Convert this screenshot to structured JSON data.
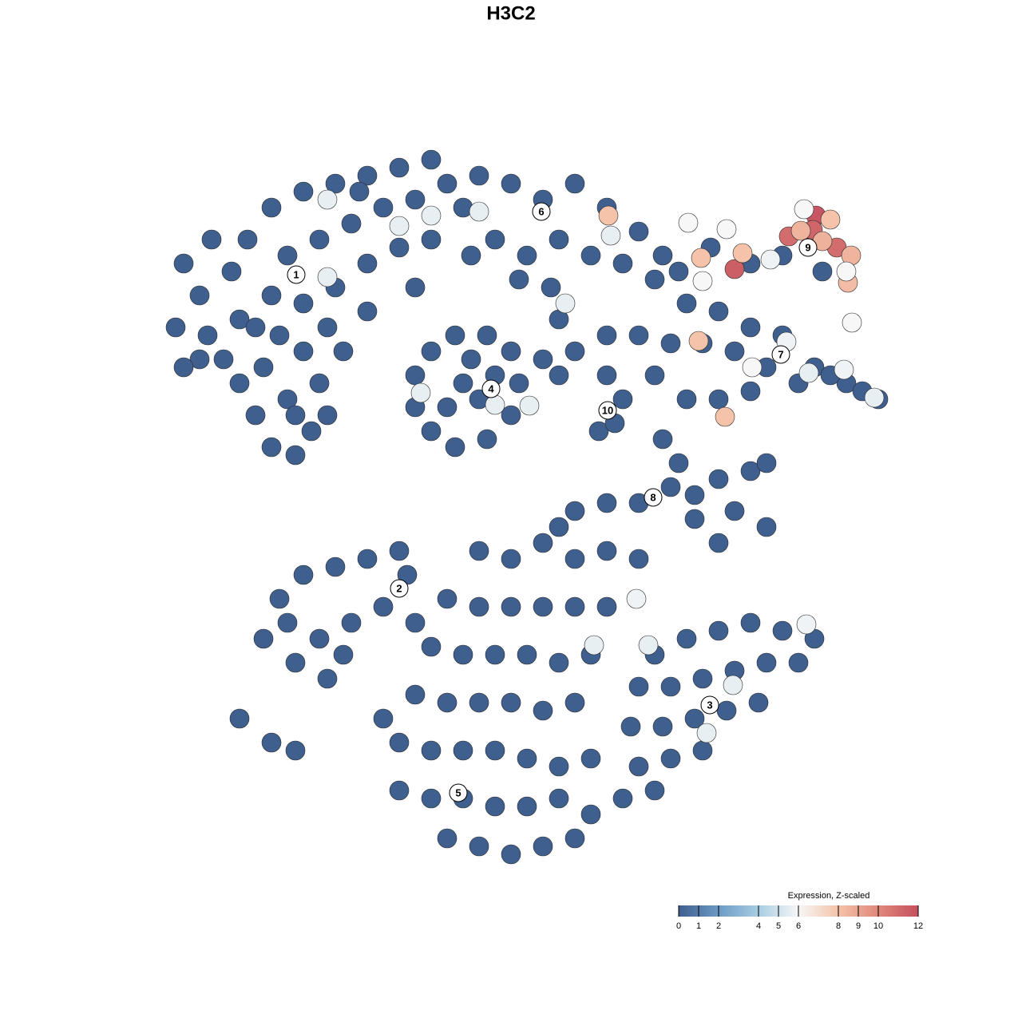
{
  "chart_data": {
    "type": "scatter",
    "title": "H3C2",
    "xlim": [
      0,
      930
    ],
    "ylim": [
      0,
      905
    ],
    "x": [
      30,
      50,
      20,
      60,
      80,
      100,
      120,
      140,
      170,
      190,
      160,
      130,
      100,
      90,
      110,
      140,
      180,
      220,
      260,
      300,
      340,
      360,
      320,
      280,
      240,
      200,
      160,
      140,
      180,
      220,
      260,
      300,
      210,
      180,
      150,
      200,
      170,
      230,
      260,
      320,
      340,
      380,
      65,
      120,
      210,
      250,
      50,
      30,
      400,
      440,
      480,
      520,
      560,
      600,
      630,
      500,
      460,
      420,
      390,
      540,
      580,
      490,
      500,
      450,
      620,
      650,
      320,
      340,
      370,
      410,
      440,
      450,
      440,
      410,
      370,
      340,
      320,
      380,
      400,
      360,
      420,
      390,
      480,
      520,
      560,
      600,
      560,
      580,
      550,
      570,
      500,
      620,
      660,
      700,
      740,
      780,
      820,
      860,
      900,
      680,
      720,
      760,
      800,
      840,
      660,
      700,
      740,
      880,
      640,
      690,
      740,
      780,
      830,
      820,
      630,
      650,
      670,
      700,
      740,
      760,
      720,
      760,
      700,
      670,
      640,
      600,
      560,
      520,
      500,
      130,
      160,
      150,
      180,
      220,
      260,
      300,
      310,
      280,
      240,
      200,
      170,
      210,
      230,
      100,
      140,
      170,
      320,
      400,
      440,
      480,
      520,
      560,
      600,
      360,
      400,
      440,
      480,
      520,
      560,
      340,
      380,
      420,
      460,
      500,
      540,
      320,
      360,
      400,
      440,
      480,
      520,
      300,
      340,
      380,
      420,
      460,
      500,
      540,
      300,
      340,
      380,
      420,
      460,
      500,
      540,
      360,
      400,
      440,
      480,
      520,
      280,
      620,
      660,
      700,
      740,
      780,
      820,
      600,
      640,
      680,
      720,
      760,
      800,
      590,
      630,
      670,
      710,
      750,
      600,
      640,
      680,
      580,
      620,
      210,
      210,
      340,
      300,
      400,
      565,
      508,
      562,
      327,
      420,
      463,
      785,
      813,
      857,
      895,
      742,
      675,
      708,
      822,
      818,
      788,
      720,
      848,
      803,
      830,
      730,
      678,
      862,
      866,
      840,
      662,
      807,
      710,
      765,
      860,
      867,
      680,
      544,
      612,
      718,
      685,
      810,
      597
    ],
    "y": [
      760,
      720,
      680,
      670,
      640,
      610,
      570,
      530,
      520,
      550,
      590,
      630,
      690,
      750,
      790,
      830,
      850,
      860,
      870,
      880,
      890,
      860,
      840,
      830,
      810,
      790,
      770,
      720,
      710,
      730,
      760,
      780,
      680,
      650,
      670,
      610,
      570,
      650,
      700,
      730,
      790,
      830,
      790,
      680,
      570,
      850,
      640,
      630,
      870,
      860,
      840,
      860,
      830,
      800,
      770,
      790,
      770,
      790,
      770,
      770,
      760,
      730,
      690,
      740,
      740,
      750,
      620,
      650,
      670,
      670,
      650,
      610,
      570,
      540,
      530,
      550,
      580,
      610,
      590,
      580,
      620,
      640,
      640,
      650,
      670,
      670,
      620,
      590,
      550,
      560,
      620,
      620,
      710,
      700,
      680,
      670,
      630,
      610,
      590,
      660,
      650,
      630,
      610,
      620,
      590,
      590,
      600,
      600,
      660,
      780,
      760,
      770,
      750,
      790,
      540,
      510,
      470,
      490,
      500,
      510,
      450,
      430,
      410,
      440,
      480,
      460,
      460,
      450,
      430,
      290,
      310,
      340,
      370,
      380,
      390,
      400,
      370,
      330,
      310,
      290,
      260,
      240,
      270,
      190,
      160,
      150,
      310,
      400,
      390,
      410,
      390,
      400,
      390,
      340,
      330,
      330,
      330,
      330,
      330,
      280,
      270,
      270,
      270,
      260,
      270,
      220,
      210,
      210,
      210,
      200,
      210,
      160,
      150,
      150,
      150,
      140,
      130,
      140,
      100,
      90,
      90,
      80,
      80,
      90,
      70,
      40,
      30,
      20,
      30,
      40,
      190,
      270,
      290,
      300,
      310,
      300,
      290,
      230,
      230,
      240,
      250,
      260,
      260,
      180,
      180,
      190,
      200,
      210,
      130,
      140,
      150,
      90,
      100,
      840,
      743,
      820,
      807,
      825,
      795,
      710,
      820,
      598,
      583,
      582,
      662,
      623,
      627,
      592,
      630,
      663,
      568,
      820,
      802,
      794,
      753,
      780,
      801,
      788,
      773,
      767,
      736,
      770,
      815,
      811,
      828,
      803,
      765,
      750,
      686,
      738,
      282,
      282,
      232,
      172,
      308,
      340
    ],
    "values": [
      0,
      0,
      0,
      0,
      0,
      0,
      0,
      0,
      0,
      0,
      0,
      0,
      0,
      0,
      0,
      0,
      0,
      0,
      0,
      0,
      0,
      0,
      0,
      0,
      0,
      0,
      0,
      0,
      0,
      0,
      0,
      0,
      0,
      0,
      0,
      0,
      0,
      0,
      0,
      0,
      0,
      0,
      0,
      0,
      0,
      0,
      0,
      0,
      0,
      0,
      0,
      0,
      0,
      0,
      0,
      0,
      0,
      0,
      0,
      0,
      0,
      0,
      0,
      0,
      0,
      0,
      0,
      0,
      0,
      0,
      0,
      0,
      0,
      0,
      0,
      0,
      0,
      0,
      0,
      0,
      0,
      0,
      0,
      0,
      0,
      0,
      0,
      0,
      0,
      0,
      0,
      0,
      0,
      0,
      0,
      0,
      0,
      0,
      0,
      0,
      0,
      0,
      0,
      0,
      0,
      0,
      0,
      0,
      0,
      0,
      0,
      0,
      0,
      0,
      0,
      0,
      0,
      0,
      0,
      0,
      0,
      0,
      0,
      0,
      0,
      0,
      0,
      0,
      0,
      0,
      0,
      0,
      0,
      0,
      0,
      0,
      0,
      0,
      0,
      0,
      0,
      0,
      0,
      0,
      0,
      0,
      0,
      0,
      0,
      0,
      0,
      0,
      0,
      0,
      0,
      0,
      0,
      0,
      0,
      0,
      0,
      0,
      0,
      0,
      0,
      0,
      0,
      0,
      0,
      0,
      0,
      0,
      0,
      0,
      0,
      0,
      0,
      0,
      0,
      0,
      0,
      0,
      0,
      0,
      0,
      0,
      0,
      0,
      0,
      0,
      0,
      0,
      0,
      0,
      0,
      0,
      0,
      0,
      0,
      0,
      0,
      0,
      0,
      0,
      0,
      0,
      0,
      0,
      0,
      0,
      0,
      0,
      0,
      5.6,
      5.6,
      5.6,
      5.6,
      5.6,
      5.6,
      5.6,
      8,
      5.6,
      5.6,
      5.6,
      5.8,
      5.6,
      5.8,
      5.6,
      6,
      8,
      8,
      11.8,
      11.2,
      11,
      11.5,
      11,
      8.5,
      8.6,
      8,
      8,
      8.2,
      8.5,
      8,
      6,
      6,
      6,
      5.8,
      6,
      6,
      6,
      5.6,
      5.6,
      5.6,
      5.6,
      5.8,
      5.8
    ],
    "cluster_labels": [
      {
        "text": "1",
        "x": 171,
        "y": 746
      },
      {
        "text": "2",
        "x": 300,
        "y": 353
      },
      {
        "text": "3",
        "x": 689,
        "y": 207
      },
      {
        "text": "4",
        "x": 415,
        "y": 603
      },
      {
        "text": "5",
        "x": 374,
        "y": 97
      },
      {
        "text": "6",
        "x": 478,
        "y": 825
      },
      {
        "text": "7",
        "x": 778,
        "y": 646
      },
      {
        "text": "8",
        "x": 618,
        "y": 467
      },
      {
        "text": "9",
        "x": 812,
        "y": 780
      },
      {
        "text": "10",
        "x": 561,
        "y": 576
      }
    ],
    "colorbar": {
      "title": "Expression, Z-scaled",
      "lim": [
        0,
        12
      ],
      "ticks": [
        0,
        1,
        2,
        4,
        5,
        6,
        8,
        9,
        10,
        12
      ],
      "colors": [
        "#3f5f8f",
        "#6c9bc5",
        "#a9cde3",
        "#f7f7f7",
        "#f4c3a9",
        "#e0887a",
        "#c5505f"
      ]
    }
  }
}
